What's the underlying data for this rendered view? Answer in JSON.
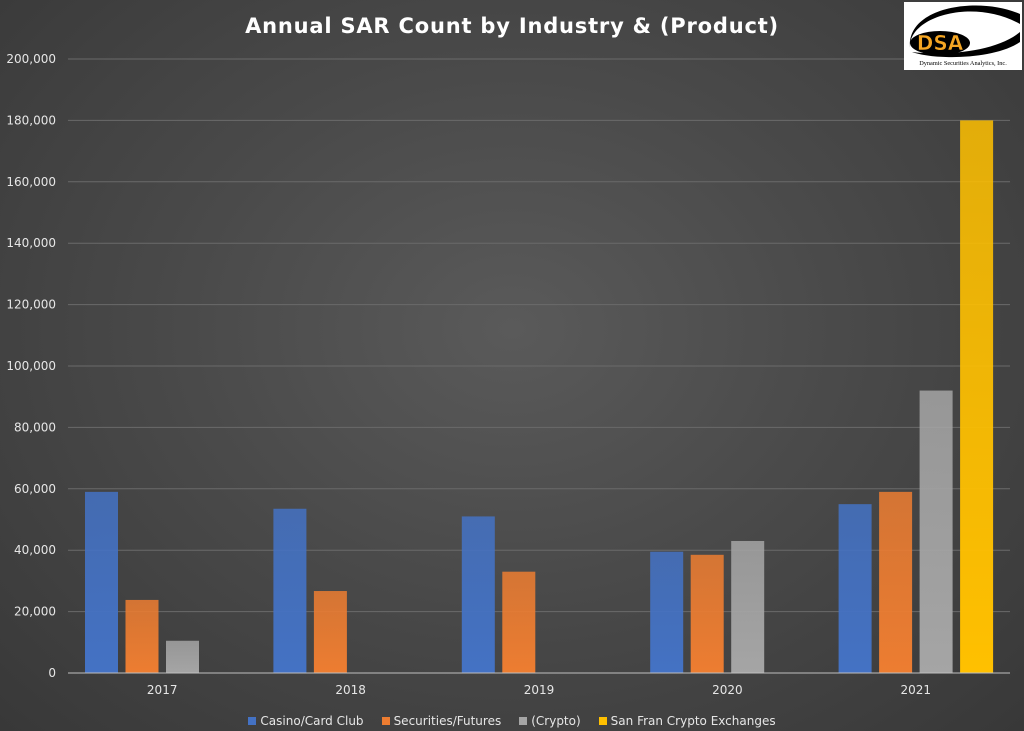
{
  "chart_data": {
    "type": "bar",
    "title": "Annual SAR Count by Industry & (Product)",
    "categories": [
      "2017",
      "2018",
      "2019",
      "2020",
      "2021"
    ],
    "series": [
      {
        "name": "Casino/Card Club",
        "color": "#4472c4",
        "values": [
          59000,
          53500,
          51000,
          39500,
          55000
        ]
      },
      {
        "name": "Securities/Futures",
        "color": "#ed7d31",
        "values": [
          23800,
          26700,
          33000,
          38500,
          59000
        ]
      },
      {
        "name": "(Crypto)",
        "color": "#a5a5a5",
        "values": [
          10500,
          null,
          null,
          43000,
          92000
        ]
      },
      {
        "name": "San Fran Crypto Exchanges",
        "color": "#ffc000",
        "values": [
          null,
          null,
          null,
          null,
          180000
        ]
      }
    ],
    "y_ticks": [
      "0",
      "20,000",
      "40,000",
      "60,000",
      "80,000",
      "100,000",
      "120,000",
      "140,000",
      "160,000",
      "180,000",
      "200,000"
    ],
    "ylim": [
      0,
      200000
    ],
    "xlabel": "",
    "ylabel": "",
    "grid": true,
    "legend_position": "bottom"
  },
  "logo": {
    "text": "DSA",
    "caption": "Dynamic Securities Analytics, Inc."
  }
}
